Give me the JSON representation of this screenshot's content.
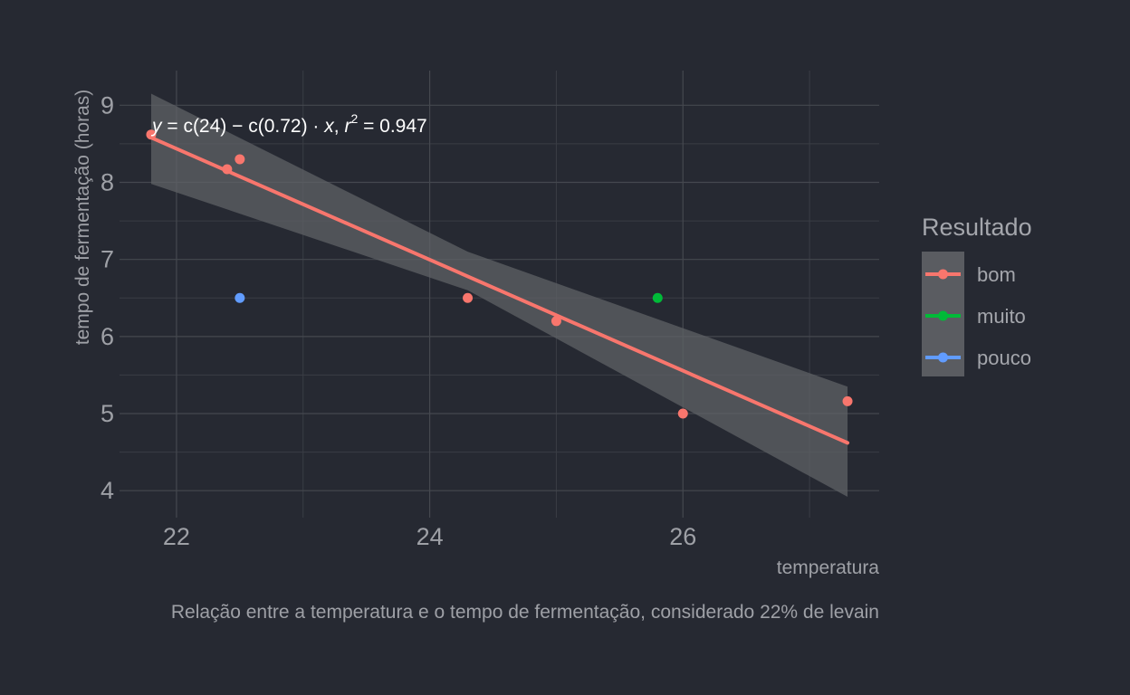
{
  "chart_data": {
    "type": "scatter",
    "title": "",
    "caption": "Relação entre a temperatura e o tempo de fermentação, considerado 22% de levain",
    "xlabel": "temperatura",
    "ylabel": "tempo de fermentação (horas)",
    "xlim": [
      21.55,
      27.55
    ],
    "ylim": [
      3.65,
      9.45
    ],
    "x_ticks": [
      22,
      24,
      26
    ],
    "x_tick_labels": [
      "22",
      "24",
      "26"
    ],
    "y_ticks": [
      4,
      5,
      6,
      7,
      8,
      9
    ],
    "y_tick_labels": [
      "4",
      "5",
      "6",
      "7",
      "8",
      "9"
    ],
    "grid": true,
    "series": [
      {
        "name": "bom",
        "color": "#f8766d",
        "points": [
          {
            "x": 21.8,
            "y": 8.62
          },
          {
            "x": 22.4,
            "y": 8.17
          },
          {
            "x": 22.5,
            "y": 8.3
          },
          {
            "x": 24.3,
            "y": 6.5
          },
          {
            "x": 25.0,
            "y": 6.2
          },
          {
            "x": 26.0,
            "y": 5.0
          },
          {
            "x": 27.3,
            "y": 5.16
          }
        ]
      },
      {
        "name": "muito",
        "color": "#00ba38",
        "points": [
          {
            "x": 25.8,
            "y": 6.5
          }
        ]
      },
      {
        "name": "pouco",
        "color": "#619cff",
        "points": [
          {
            "x": 22.5,
            "y": 6.5
          }
        ]
      }
    ],
    "fit": {
      "method": "linear",
      "color": "#f8766d",
      "band_color": "#5f6166",
      "line": [
        {
          "x": 21.8,
          "y": 8.58
        },
        {
          "x": 27.3,
          "y": 4.62
        }
      ],
      "band": [
        {
          "x": 21.8,
          "lower": 7.98,
          "upper": 9.15
        },
        {
          "x": 24.3,
          "lower": 6.6,
          "upper": 7.1
        },
        {
          "x": 27.3,
          "lower": 3.92,
          "upper": 5.35
        }
      ]
    },
    "annotation": {
      "lhs": "y",
      "eq": " = ",
      "intercept": "c(24)",
      "minus": " − ",
      "slope": "c(0.72)",
      "dot": " · ",
      "var": "x",
      "sep": ",  ",
      "r_label": "r",
      "r_exp": "2",
      "r_val": " = 0.947",
      "x": 21.8,
      "y": 8.7
    },
    "legend": {
      "title": "Resultado",
      "placement": "right",
      "items": [
        {
          "label": "bom",
          "color": "#f8766d"
        },
        {
          "label": "muito",
          "color": "#00ba38"
        },
        {
          "label": "pouco",
          "color": "#619cff"
        }
      ]
    }
  }
}
